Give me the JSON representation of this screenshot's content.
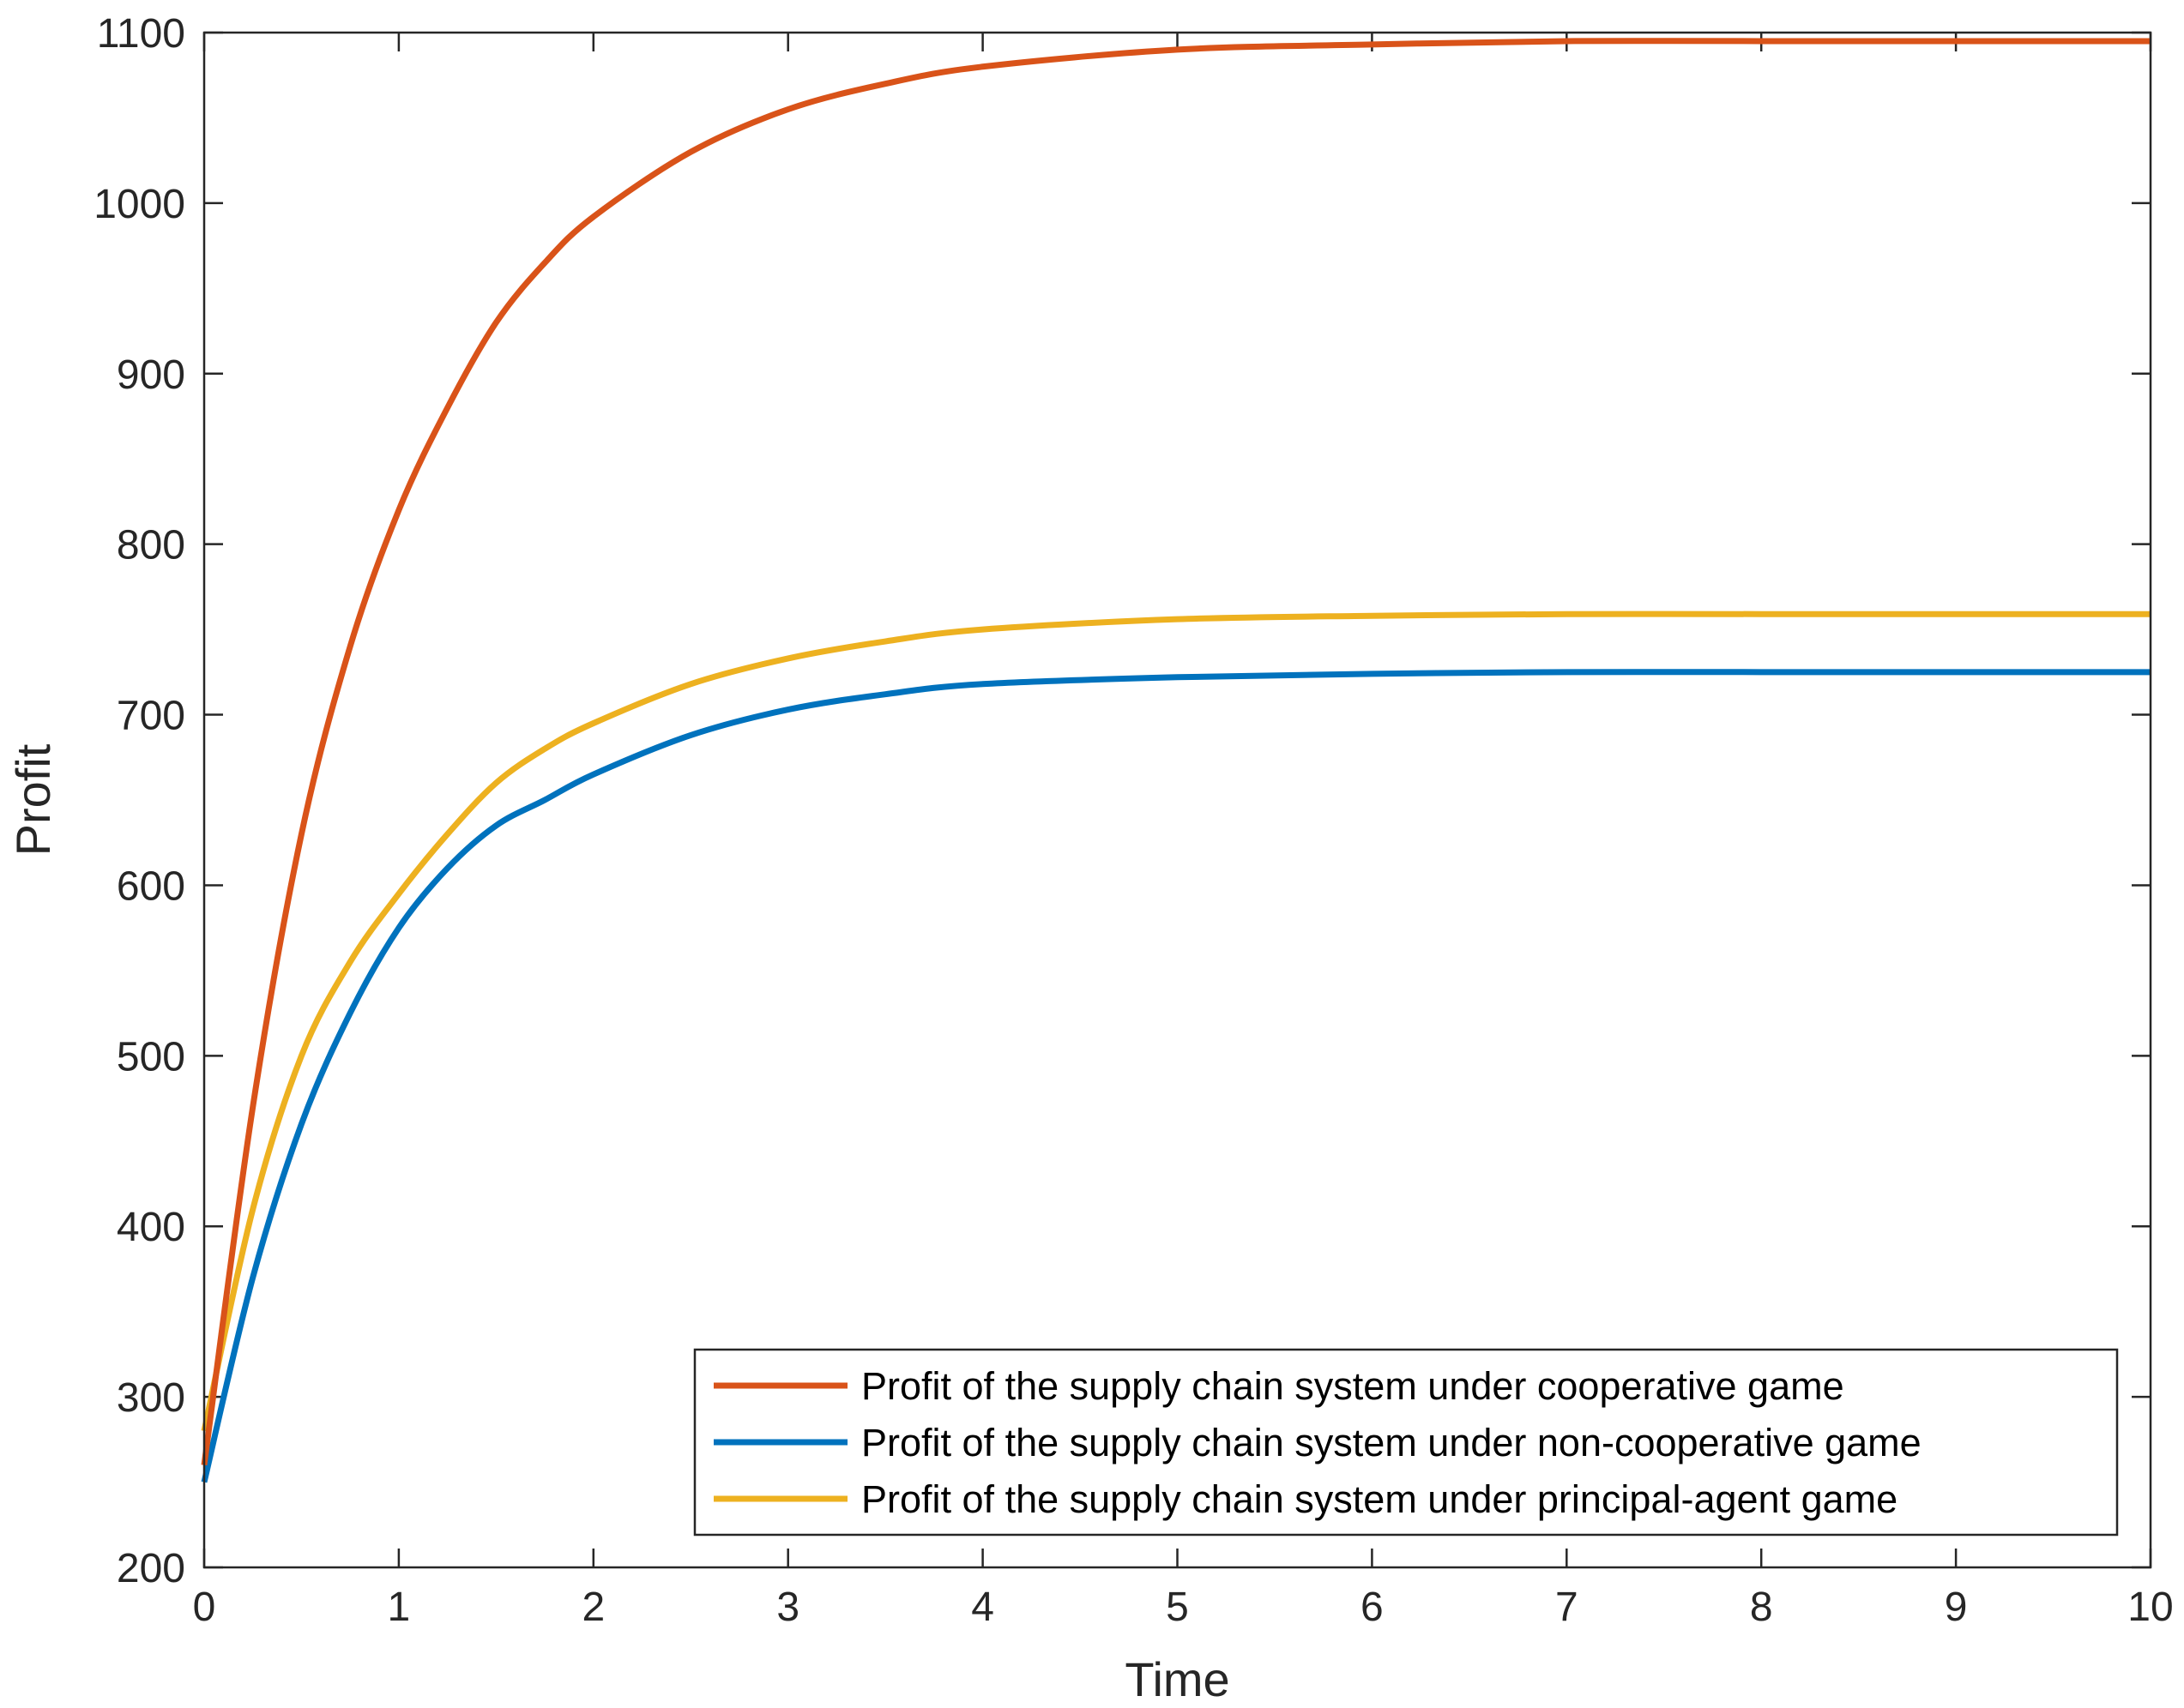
{
  "chart_data": {
    "type": "line",
    "title": "",
    "xlabel": "Time",
    "ylabel": "Profit",
    "xlim": [
      0,
      10
    ],
    "ylim": [
      200,
      1100
    ],
    "xticks": [
      0,
      1,
      2,
      3,
      4,
      5,
      6,
      7,
      8,
      9,
      10
    ],
    "yticks": [
      200,
      300,
      400,
      500,
      600,
      700,
      800,
      900,
      1000,
      1100
    ],
    "grid": false,
    "legend_position": "bottom-right",
    "x": [
      0,
      0.25,
      0.5,
      0.75,
      1,
      1.25,
      1.5,
      1.75,
      2,
      2.5,
      3,
      3.5,
      4,
      5,
      6,
      7,
      8,
      9,
      10
    ],
    "series": [
      {
        "name": "Profit of the supply chain system under cooperative game",
        "color": "#D95319",
        "values": [
          260,
          470,
          630,
          740,
          820,
          880,
          930,
          965,
          992,
          1030,
          1055,
          1070,
          1080,
          1090,
          1093,
          1095,
          1095,
          1095,
          1095
        ]
      },
      {
        "name": "Profit of the supply chain system under non-cooperative game",
        "color": "#0072BD",
        "values": [
          250,
          370,
          460,
          525,
          575,
          610,
          635,
          650,
          665,
          688,
          703,
          712,
          718,
          722,
          724,
          725,
          725,
          725,
          725
        ]
      },
      {
        "name": "Profit of the supply chain system under principal-agent game",
        "color": "#EDB120",
        "values": [
          280,
          410,
          500,
          555,
          595,
          630,
          660,
          680,
          695,
          718,
          733,
          743,
          750,
          756,
          758,
          759,
          759,
          759,
          759
        ]
      }
    ]
  }
}
